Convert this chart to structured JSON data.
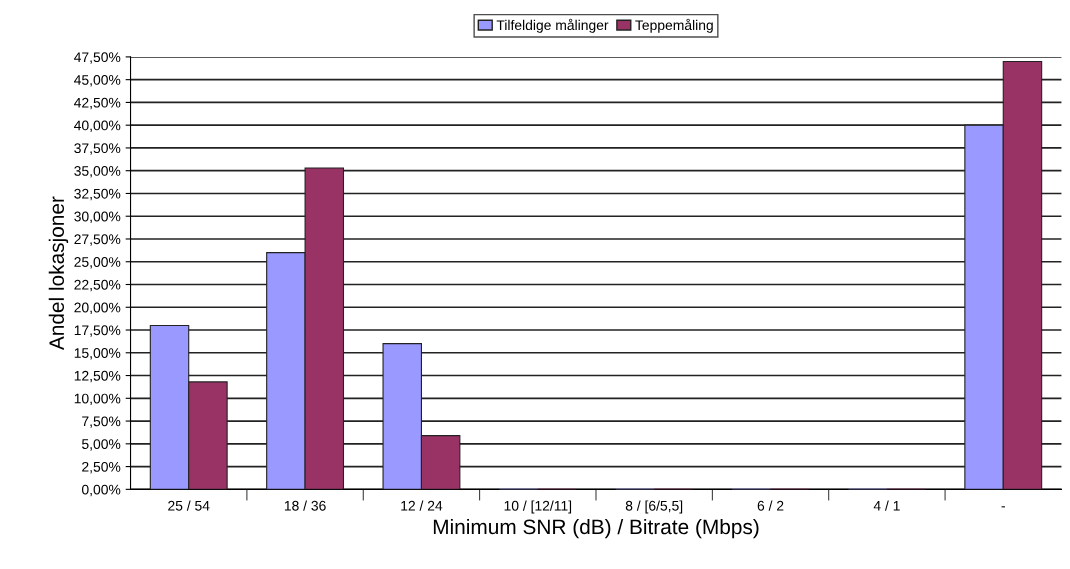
{
  "chart_data": {
    "type": "bar",
    "xlabel": "Minimum SNR (dB) / Bitrate (Mbps)",
    "ylabel": "Andel lokasjoner",
    "categories": [
      "25 / 54",
      "18 / 36",
      "12 / 24",
      "10 / [12/11]",
      "8 / [6/5,5]",
      "6 / 2",
      "4 / 1",
      "-"
    ],
    "series": [
      {
        "name": "Tilfeldige målinger",
        "color": "#9999ff",
        "values": [
          18,
          26,
          16,
          0,
          0,
          0,
          0,
          40
        ]
      },
      {
        "name": "Teppemåling",
        "color": "#993366",
        "values": [
          11.8,
          35.3,
          5.9,
          0,
          0,
          0,
          0,
          47
        ]
      }
    ],
    "ylim": [
      0,
      47.5
    ],
    "yticks": [
      {
        "value": 0,
        "label": "0,00%"
      },
      {
        "value": 2.5,
        "label": "2,50%"
      },
      {
        "value": 5,
        "label": "5,00%"
      },
      {
        "value": 7.5,
        "label": "7,50%"
      },
      {
        "value": 10,
        "label": "10,00%"
      },
      {
        "value": 12.5,
        "label": "12,50%"
      },
      {
        "value": 15,
        "label": "15,00%"
      },
      {
        "value": 17.5,
        "label": "17,50%"
      },
      {
        "value": 20,
        "label": "20,00%"
      },
      {
        "value": 22.5,
        "label": "22,50%"
      },
      {
        "value": 25,
        "label": "25,00%"
      },
      {
        "value": 27.5,
        "label": "27,50%"
      },
      {
        "value": 30,
        "label": "30,00%"
      },
      {
        "value": 32.5,
        "label": "32,50%"
      },
      {
        "value": 35,
        "label": "35,00%"
      },
      {
        "value": 37.5,
        "label": "37,50%"
      },
      {
        "value": 40,
        "label": "40,00%"
      },
      {
        "value": 42.5,
        "label": "42,50%"
      },
      {
        "value": 45,
        "label": "45,00%"
      },
      {
        "value": 47.5,
        "label": "47,50%"
      }
    ],
    "grid": "y",
    "legend": "top"
  }
}
